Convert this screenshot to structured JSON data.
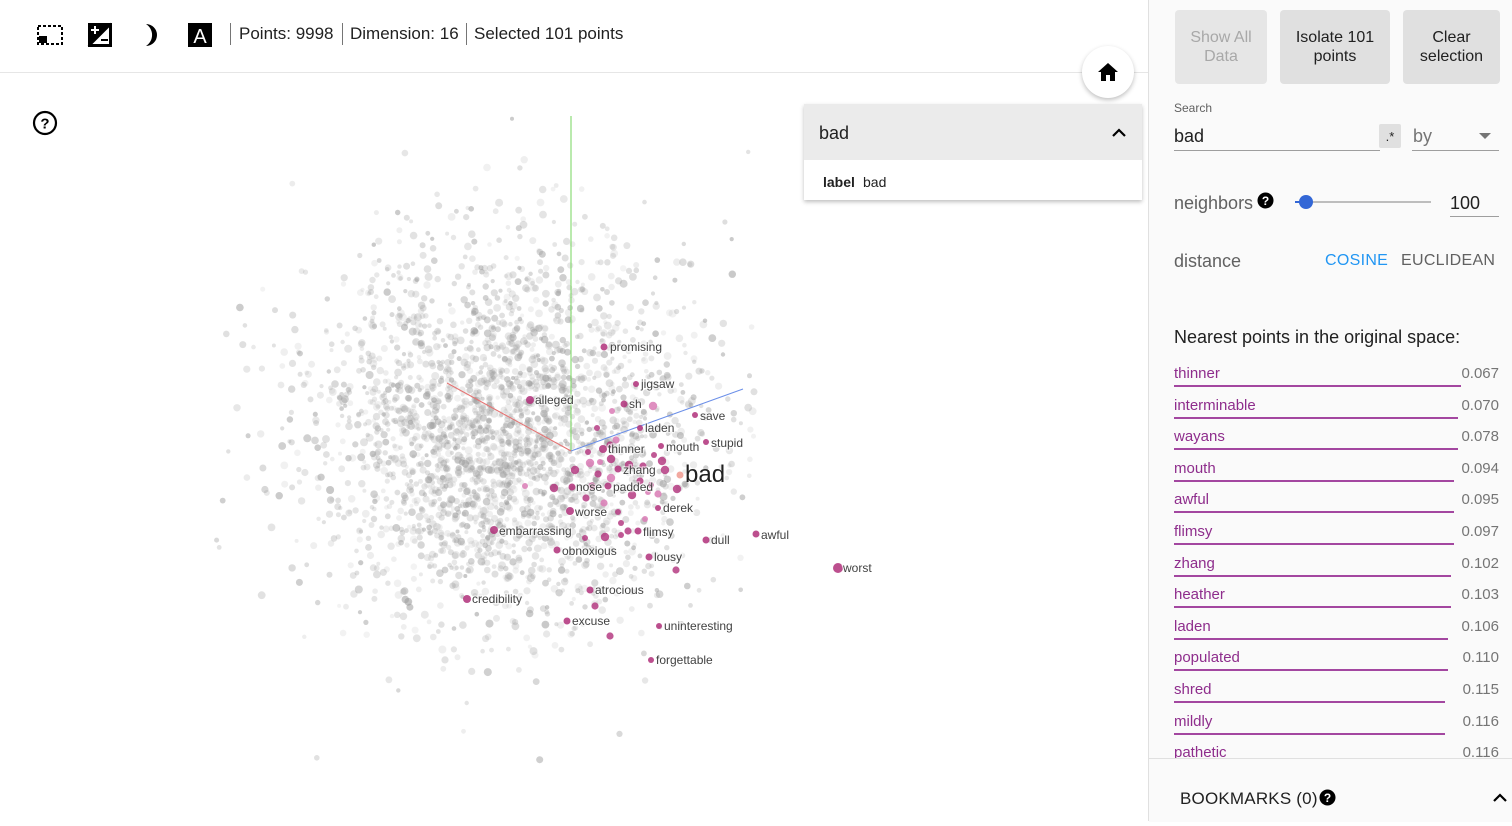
{
  "toolbar": {
    "icons": [
      "select-rectangle-icon",
      "night-mode-icon",
      "label-icon"
    ],
    "points_text": "Points: 9998",
    "dimension_text": "Dimension: 16",
    "selected_text": "Selected 101 points"
  },
  "plot": {
    "focus_label": "bad",
    "labels": [
      "promising",
      "jigsaw",
      "alleged",
      "sh",
      "save",
      "laden",
      "stupid",
      "thinner",
      "mouth",
      "zhang",
      "bad",
      "nose",
      "padded",
      "derek",
      "worse",
      "embarrassing",
      "flimsy",
      "dull",
      "awful",
      "obnoxious",
      "lousy",
      "worst",
      "atrocious",
      "credibility",
      "excuse",
      "uninteresting",
      "forgettable"
    ],
    "colors": {
      "selected": "#b0307a",
      "neighbor_light": "#d97bb5",
      "background_point": "#9e9e9e",
      "axis_x": "#e57373",
      "axis_y": "#76d65c",
      "axis_z": "#6b8fe8"
    }
  },
  "search_card": {
    "title": "bad",
    "key": "label",
    "value": "bad"
  },
  "panel": {
    "buttons": {
      "show_all": "Show All Data",
      "isolate": "Isolate 101 points",
      "clear": "Clear selection"
    },
    "search": {
      "label": "Search",
      "value": "bad",
      "regex": ".*",
      "by": "by"
    },
    "neighbors": {
      "label": "neighbors",
      "value": "100",
      "slider_fraction": 0.08
    },
    "distance": {
      "label": "distance",
      "cosine": "COSINE",
      "euclidean": "EUCLIDEAN"
    },
    "nearest_title": "Nearest points in the original space:",
    "nearest": [
      {
        "word": "thinner",
        "dist": "0.067",
        "bar": 0.88
      },
      {
        "word": "interminable",
        "dist": "0.070",
        "bar": 0.87
      },
      {
        "word": "wayans",
        "dist": "0.078",
        "bar": 0.87
      },
      {
        "word": "mouth",
        "dist": "0.094",
        "bar": 0.86
      },
      {
        "word": "awful",
        "dist": "0.095",
        "bar": 0.86
      },
      {
        "word": "flimsy",
        "dist": "0.097",
        "bar": 0.86
      },
      {
        "word": "zhang",
        "dist": "0.102",
        "bar": 0.85
      },
      {
        "word": "heather",
        "dist": "0.103",
        "bar": 0.85
      },
      {
        "word": "laden",
        "dist": "0.106",
        "bar": 0.84
      },
      {
        "word": "populated",
        "dist": "0.110",
        "bar": 0.84
      },
      {
        "word": "shred",
        "dist": "0.115",
        "bar": 0.83
      },
      {
        "word": "mildly",
        "dist": "0.116",
        "bar": 0.83
      },
      {
        "word": "pathetic",
        "dist": "0.116",
        "bar": 0.83
      }
    ],
    "bookmarks": "BOOKMARKS (0)"
  }
}
